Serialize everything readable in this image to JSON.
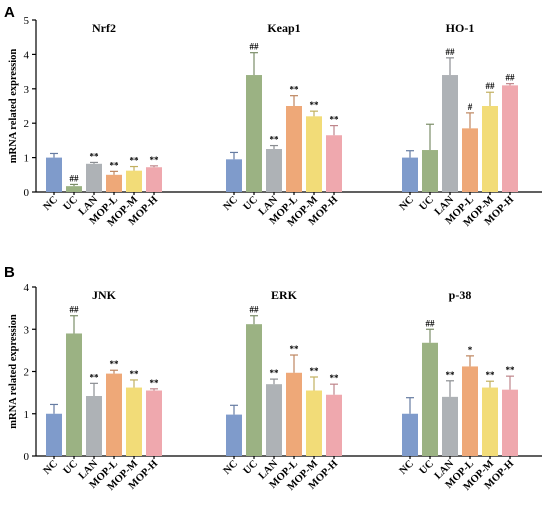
{
  "colors": {
    "NC": "#7f9bcb",
    "UC": "#9bb283",
    "LAN": "#aeb2b6",
    "MOP-L": "#eea878",
    "MOP-M": "#f2dc78",
    "MOP-H": "#efa8ae"
  },
  "chart_data": [
    {
      "panel": "A",
      "type": "bar",
      "ylabel": "mRNA related expression",
      "ylim": [
        0,
        5
      ],
      "yticks": [
        0,
        1,
        2,
        3,
        4,
        5
      ],
      "categories": [
        "NC",
        "UC",
        "LAN",
        "MOP-L",
        "MOP-M",
        "MOP-H"
      ],
      "groups": [
        {
          "title": "Nrf2",
          "values": [
            1.0,
            0.17,
            0.82,
            0.5,
            0.62,
            0.72
          ],
          "errors": [
            0.12,
            0.05,
            0.04,
            0.1,
            0.12,
            0.04
          ],
          "sig": [
            "",
            "##",
            "**",
            "**",
            "**",
            "**"
          ]
        },
        {
          "title": "Keap1",
          "values": [
            0.95,
            3.4,
            1.25,
            2.5,
            2.2,
            1.65
          ],
          "errors": [
            0.2,
            0.65,
            0.1,
            0.3,
            0.15,
            0.28
          ],
          "sig": [
            "",
            "##",
            "**",
            "**",
            "**",
            "**"
          ]
        },
        {
          "title": "HO-1",
          "values": [
            1.0,
            1.22,
            3.4,
            1.85,
            2.5,
            3.1
          ],
          "errors": [
            0.2,
            0.75,
            0.5,
            0.45,
            0.4,
            0.05
          ],
          "sig": [
            "",
            "",
            "##",
            "#",
            "##",
            "##"
          ]
        }
      ]
    },
    {
      "panel": "B",
      "type": "bar",
      "ylabel": "mRNA related expression",
      "ylim": [
        0,
        4
      ],
      "yticks": [
        0,
        1,
        2,
        3,
        4
      ],
      "categories": [
        "NC",
        "UC",
        "LAN",
        "MOP-L",
        "MOP-M",
        "MOP-H"
      ],
      "groups": [
        {
          "title": "JNK",
          "values": [
            1.0,
            2.9,
            1.42,
            1.95,
            1.62,
            1.55
          ],
          "errors": [
            0.22,
            0.42,
            0.3,
            0.08,
            0.18,
            0.04
          ],
          "sig": [
            "",
            "##",
            "**",
            "**",
            "**",
            "**"
          ]
        },
        {
          "title": "ERK",
          "values": [
            0.98,
            3.12,
            1.7,
            1.97,
            1.55,
            1.45
          ],
          "errors": [
            0.22,
            0.2,
            0.12,
            0.42,
            0.32,
            0.25
          ],
          "sig": [
            "",
            "##",
            "**",
            "**",
            "**",
            "**"
          ]
        },
        {
          "title": "p-38",
          "values": [
            1.0,
            2.68,
            1.4,
            2.12,
            1.62,
            1.57
          ],
          "errors": [
            0.38,
            0.32,
            0.38,
            0.25,
            0.15,
            0.32
          ],
          "sig": [
            "",
            "##",
            "**",
            "*",
            "**",
            "**"
          ]
        }
      ]
    }
  ]
}
